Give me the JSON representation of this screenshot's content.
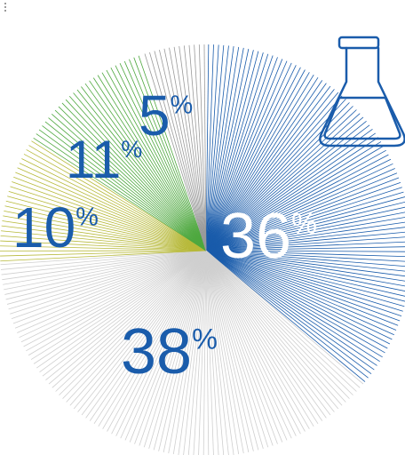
{
  "chart_data": {
    "type": "pie",
    "categories": null,
    "values": [
      36,
      38,
      10,
      11,
      5
    ],
    "value_labels": [
      "36%",
      "38%",
      "10%",
      "11%",
      "5%"
    ],
    "colors": [
      "#1a5cab",
      "#cfcfcf",
      "#b7b93a",
      "#4ea83f",
      "#9a9a9a"
    ]
  }
}
